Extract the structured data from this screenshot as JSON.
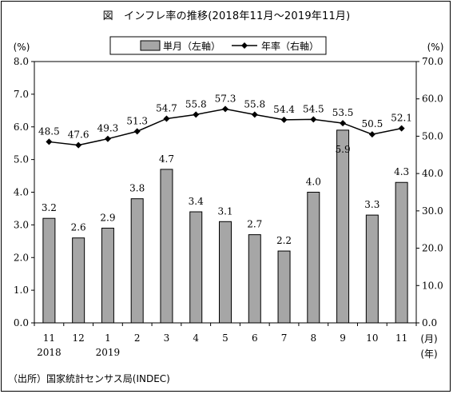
{
  "title": "図　インフレ率の推移(2018年11月～2019年11月)",
  "source": "（出所）国家統計センサス局(INDEC)",
  "left_axis_unit": "(%)",
  "right_axis_unit": "(%)",
  "x_unit_month": "(月)",
  "x_unit_year": "(年)",
  "colors": {
    "bar_fill": "#a6a6a6",
    "line": "#000000",
    "axis": "#000000"
  },
  "chart_data": {
    "type": "bar+line",
    "categories": [
      "11",
      "12",
      "1",
      "2",
      "3",
      "4",
      "5",
      "6",
      "7",
      "8",
      "9",
      "10",
      "11"
    ],
    "year_labels": [
      "2018",
      "",
      "2019",
      "",
      "",
      "",
      "",
      "",
      "",
      "",
      "",
      "",
      ""
    ],
    "legend": {
      "position": "top-center"
    },
    "left_axis": {
      "min": 0,
      "max": 8,
      "ticks": [
        "0.0",
        "1.0",
        "2.0",
        "3.0",
        "4.0",
        "5.0",
        "6.0",
        "7.0",
        "8.0"
      ]
    },
    "right_axis": {
      "min": 0,
      "max": 70,
      "ticks": [
        "0.0",
        "10.0",
        "20.0",
        "30.0",
        "40.0",
        "50.0",
        "60.0",
        "70.0"
      ]
    },
    "series": [
      {
        "name": "単月（左軸）",
        "type": "bar",
        "axis": "left",
        "values": [
          3.2,
          2.6,
          2.9,
          3.8,
          4.7,
          3.4,
          3.1,
          2.7,
          2.2,
          4.0,
          5.9,
          3.3,
          4.3
        ],
        "labels": [
          "3.2",
          "2.6",
          "2.9",
          "3.8",
          "4.7",
          "3.4",
          "3.1",
          "2.7",
          "2.2",
          "4.0",
          "5.9",
          "3.3",
          "4.3"
        ]
      },
      {
        "name": "年率（右軸）",
        "type": "line",
        "axis": "right",
        "marker": "diamond",
        "values": [
          48.5,
          47.6,
          49.3,
          51.3,
          54.7,
          55.8,
          57.3,
          55.8,
          54.4,
          54.5,
          53.5,
          50.5,
          52.1
        ],
        "labels": [
          "48.5",
          "47.6",
          "49.3",
          "51.3",
          "54.7",
          "55.8",
          "57.3",
          "55.8",
          "54.4",
          "54.5",
          "53.5",
          "50.5",
          "52.1"
        ]
      }
    ]
  }
}
